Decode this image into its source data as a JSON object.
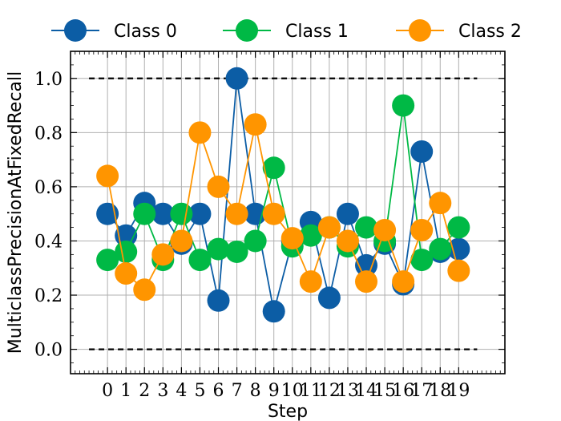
{
  "chart_data": {
    "type": "line",
    "xlabel": "Step",
    "ylabel": "MulticlassPrecisionAtFixedRecall",
    "x": [
      0,
      1,
      2,
      3,
      4,
      5,
      6,
      7,
      8,
      9,
      10,
      11,
      12,
      13,
      14,
      15,
      16,
      17,
      18,
      19
    ],
    "xlim": [
      -2.0,
      21.5
    ],
    "ylim": [
      -0.09,
      1.1
    ],
    "yticks": [
      0.0,
      0.2,
      0.4,
      0.6,
      0.8,
      1.0
    ],
    "yticklabels": [
      "0.0",
      "0.2",
      "0.4",
      "0.6",
      "0.8",
      "1.0"
    ],
    "xticklabels": [
      "0",
      "1",
      "2",
      "3",
      "4",
      "5",
      "6",
      "7",
      "8",
      "9",
      "10",
      "11",
      "12",
      "13",
      "14",
      "15",
      "16",
      "17",
      "18",
      "19"
    ],
    "grid": true,
    "legend_position": "top, outside",
    "reference_lines": [
      {
        "y": 1.0,
        "x_from": -1.0,
        "x_to": 20.0,
        "style": "dashed",
        "color": "#000000"
      },
      {
        "y": 0.0,
        "x_from": -1.0,
        "x_to": 20.0,
        "style": "dashed",
        "color": "#000000"
      }
    ],
    "series": [
      {
        "name": "Class 0",
        "color": "#0C5DA5",
        "values": [
          0.5,
          0.42,
          0.54,
          0.5,
          0.39,
          0.5,
          0.18,
          1.0,
          0.5,
          0.14,
          0.4,
          0.47,
          0.19,
          0.5,
          0.31,
          0.39,
          0.24,
          0.73,
          0.36,
          0.37
        ]
      },
      {
        "name": "Class 1",
        "color": "#00B945",
        "values": [
          0.33,
          0.36,
          0.5,
          0.33,
          0.5,
          0.33,
          0.37,
          0.36,
          0.4,
          0.67,
          0.38,
          0.42,
          0.45,
          0.38,
          0.45,
          0.4,
          0.9,
          0.33,
          0.37,
          0.45
        ]
      },
      {
        "name": "Class 2",
        "color": "#FF9500",
        "values": [
          0.64,
          0.28,
          0.22,
          0.35,
          0.4,
          0.8,
          0.6,
          0.5,
          0.83,
          0.5,
          0.41,
          0.25,
          0.45,
          0.4,
          0.25,
          0.44,
          0.25,
          0.44,
          0.54,
          0.29
        ]
      }
    ]
  }
}
